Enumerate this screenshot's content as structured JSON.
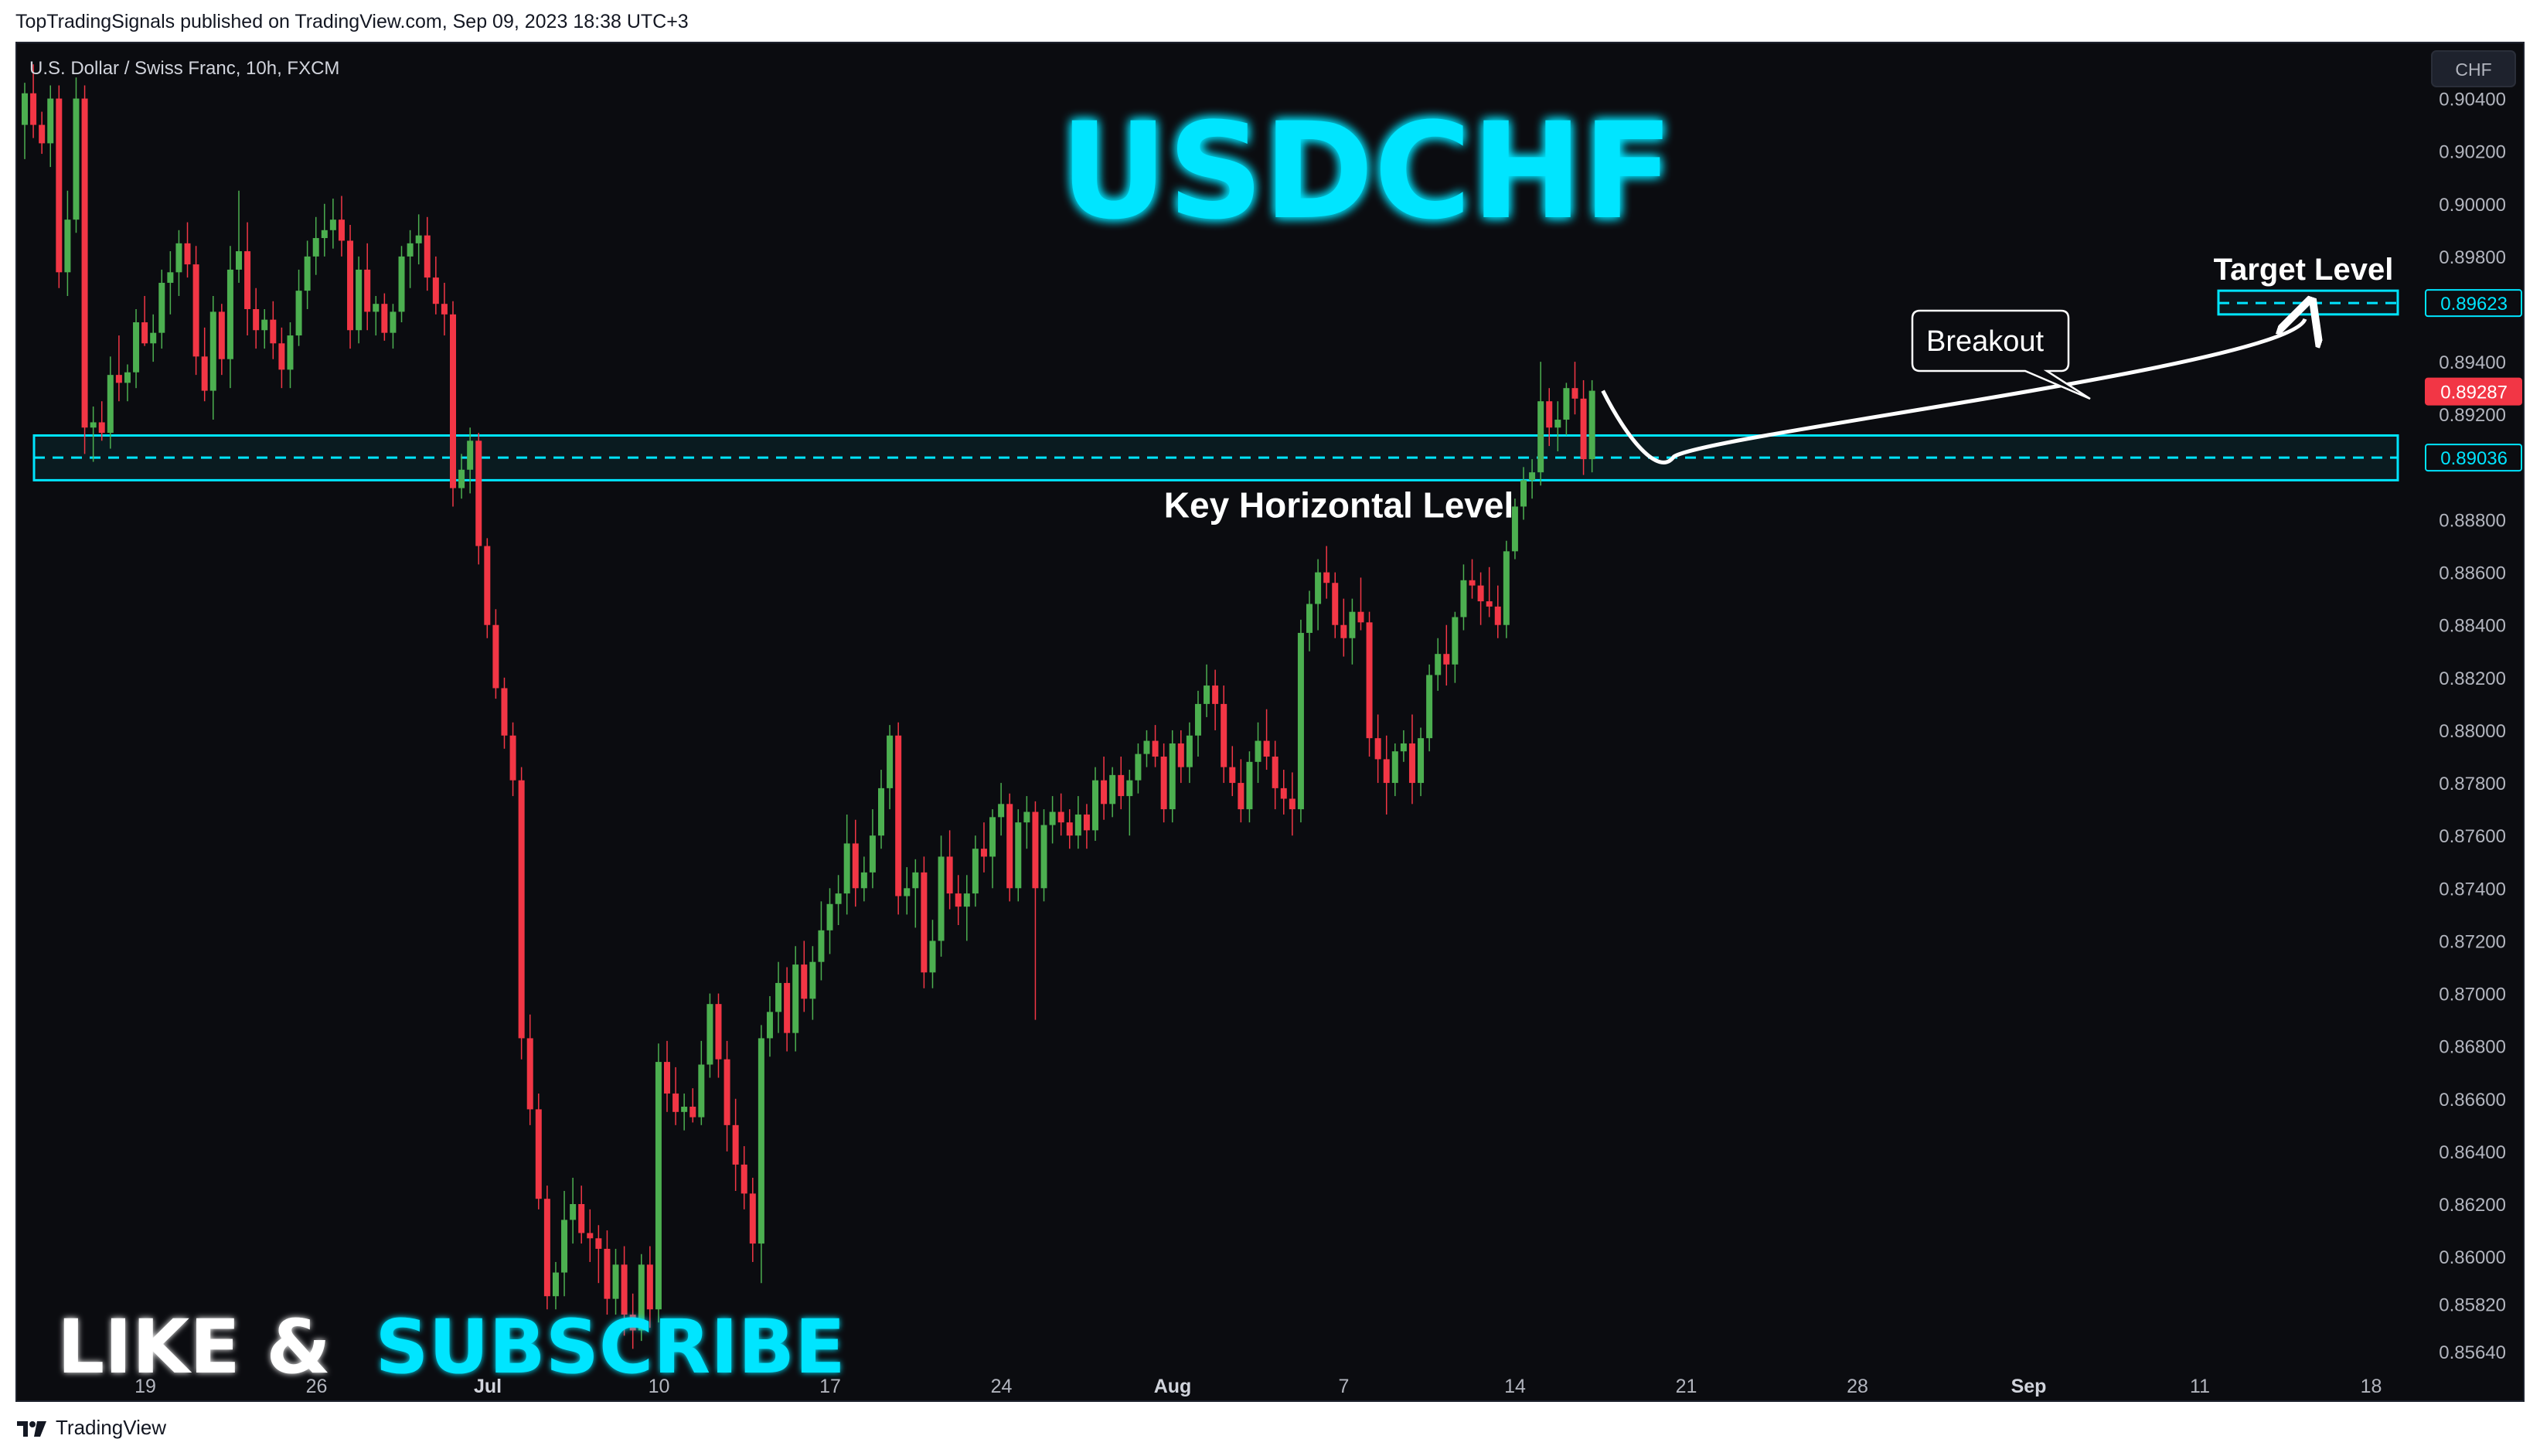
{
  "header": {
    "published_text": "TopTradingSignals published on TradingView.com, Sep 09, 2023 18:38 UTC+3"
  },
  "footer": {
    "brand": "TradingView"
  },
  "colors": {
    "background": "#0b0c10",
    "bull": "#4caf50",
    "bear": "#f23645",
    "accent": "#00e5ff",
    "text": "#b2b5be",
    "white": "#ffffff"
  },
  "chart_data": {
    "type": "candlestick",
    "symbol_label": "U.S. Dollar / Swiss Franc, 10h, FXCM",
    "currency_button": "CHF",
    "title": "USDCHF",
    "ylim": [
      0.8556,
      0.9061
    ],
    "y_ticks": [
      "0.90400",
      "0.90200",
      "0.90000",
      "0.89800",
      "0.89400",
      "0.89200",
      "0.88800",
      "0.88600",
      "0.88400",
      "0.88200",
      "0.88000",
      "0.87800",
      "0.87600",
      "0.87400",
      "0.87200",
      "0.87000",
      "0.86800",
      "0.86600",
      "0.86400",
      "0.86200",
      "0.86000",
      "0.85820",
      "0.85640"
    ],
    "x_ticks": [
      {
        "label": "19",
        "bold": false
      },
      {
        "label": "26",
        "bold": false
      },
      {
        "label": "Jul",
        "bold": true
      },
      {
        "label": "10",
        "bold": false
      },
      {
        "label": "17",
        "bold": false
      },
      {
        "label": "24",
        "bold": false
      },
      {
        "label": "Aug",
        "bold": true
      },
      {
        "label": "7",
        "bold": false
      },
      {
        "label": "14",
        "bold": false
      },
      {
        "label": "21",
        "bold": false
      },
      {
        "label": "28",
        "bold": false
      },
      {
        "label": "Sep",
        "bold": true
      },
      {
        "label": "11",
        "bold": false
      },
      {
        "label": "18",
        "bold": false
      }
    ],
    "price_tags": {
      "target": "0.89623",
      "current": "0.89287",
      "key_level": "0.89036"
    },
    "levels": {
      "key_level_top": 0.8912,
      "key_level_mid": 0.89036,
      "key_level_bottom": 0.8895,
      "target_top": 0.8967,
      "target_mid": 0.89623,
      "target_bottom": 0.8958
    },
    "annotations": {
      "key_level_label": "Key Horizontal Level",
      "target_label": "Target Level",
      "breakout_label": "Breakout",
      "cta_left": "LIKE &",
      "cta_right": "SUBSCRIBE"
    },
    "candles": [
      [
        0.903,
        0.9046,
        0.9017,
        0.9042
      ],
      [
        0.9042,
        0.9053,
        0.9025,
        0.903
      ],
      [
        0.903,
        0.9035,
        0.9019,
        0.9023
      ],
      [
        0.9023,
        0.9045,
        0.9014,
        0.904
      ],
      [
        0.904,
        0.9045,
        0.8968,
        0.8974
      ],
      [
        0.8974,
        0.9005,
        0.8965,
        0.8994
      ],
      [
        0.8994,
        0.9048,
        0.8989,
        0.904
      ],
      [
        0.904,
        0.9045,
        0.8905,
        0.8915
      ],
      [
        0.8915,
        0.8923,
        0.8902,
        0.8917
      ],
      [
        0.8917,
        0.8925,
        0.891,
        0.8913
      ],
      [
        0.8913,
        0.8942,
        0.8907,
        0.8935
      ],
      [
        0.8935,
        0.895,
        0.8925,
        0.8932
      ],
      [
        0.8932,
        0.8939,
        0.8925,
        0.8936
      ],
      [
        0.8936,
        0.896,
        0.893,
        0.8955
      ],
      [
        0.8955,
        0.8965,
        0.8946,
        0.8947
      ],
      [
        0.8947,
        0.8958,
        0.894,
        0.8951
      ],
      [
        0.8951,
        0.8975,
        0.8945,
        0.897
      ],
      [
        0.897,
        0.8982,
        0.8958,
        0.8974
      ],
      [
        0.8974,
        0.899,
        0.8965,
        0.8985
      ],
      [
        0.8985,
        0.8993,
        0.8972,
        0.8977
      ],
      [
        0.8977,
        0.8984,
        0.8935,
        0.8942
      ],
      [
        0.8942,
        0.8953,
        0.8925,
        0.8929
      ],
      [
        0.8929,
        0.8965,
        0.8918,
        0.8959
      ],
      [
        0.8959,
        0.8962,
        0.8935,
        0.8941
      ],
      [
        0.8941,
        0.8984,
        0.893,
        0.8975
      ],
      [
        0.8975,
        0.9005,
        0.897,
        0.8982
      ],
      [
        0.8982,
        0.8993,
        0.895,
        0.896
      ],
      [
        0.896,
        0.8968,
        0.8945,
        0.8952
      ],
      [
        0.8952,
        0.896,
        0.8945,
        0.8956
      ],
      [
        0.8956,
        0.8963,
        0.8941,
        0.8947
      ],
      [
        0.8947,
        0.8953,
        0.893,
        0.8937
      ],
      [
        0.8937,
        0.8955,
        0.893,
        0.895
      ],
      [
        0.895,
        0.8975,
        0.8946,
        0.8967
      ],
      [
        0.8967,
        0.8986,
        0.896,
        0.898
      ],
      [
        0.898,
        0.8995,
        0.8973,
        0.8987
      ],
      [
        0.8987,
        0.9,
        0.898,
        0.899
      ],
      [
        0.899,
        0.9002,
        0.8983,
        0.8994
      ],
      [
        0.8994,
        0.9003,
        0.898,
        0.8986
      ],
      [
        0.8986,
        0.8992,
        0.8945,
        0.8952
      ],
      [
        0.8952,
        0.898,
        0.8947,
        0.8975
      ],
      [
        0.8975,
        0.8985,
        0.8952,
        0.8959
      ],
      [
        0.8959,
        0.8965,
        0.895,
        0.8962
      ],
      [
        0.8962,
        0.8966,
        0.8948,
        0.8951
      ],
      [
        0.8951,
        0.8962,
        0.8945,
        0.8959
      ],
      [
        0.8959,
        0.8984,
        0.8955,
        0.898
      ],
      [
        0.898,
        0.899,
        0.8968,
        0.8985
      ],
      [
        0.8985,
        0.8996,
        0.8977,
        0.8988
      ],
      [
        0.8988,
        0.8995,
        0.8967,
        0.8972
      ],
      [
        0.8972,
        0.898,
        0.8958,
        0.8962
      ],
      [
        0.8962,
        0.897,
        0.895,
        0.8958
      ],
      [
        0.8958,
        0.8963,
        0.8885,
        0.8892
      ],
      [
        0.8892,
        0.8905,
        0.8888,
        0.8899
      ],
      [
        0.8899,
        0.8915,
        0.889,
        0.891
      ],
      [
        0.891,
        0.8913,
        0.8863,
        0.887
      ],
      [
        0.887,
        0.8873,
        0.8835,
        0.884
      ],
      [
        0.884,
        0.8846,
        0.8812,
        0.8816
      ],
      [
        0.8816,
        0.882,
        0.8793,
        0.8798
      ],
      [
        0.8798,
        0.8803,
        0.8775,
        0.8781
      ],
      [
        0.8781,
        0.8786,
        0.8675,
        0.8683
      ],
      [
        0.8683,
        0.8692,
        0.865,
        0.8656
      ],
      [
        0.8656,
        0.8662,
        0.8618,
        0.8622
      ],
      [
        0.8622,
        0.8627,
        0.858,
        0.8585
      ],
      [
        0.8585,
        0.8598,
        0.858,
        0.8594
      ],
      [
        0.8594,
        0.8625,
        0.8585,
        0.8614
      ],
      [
        0.8614,
        0.863,
        0.8605,
        0.862
      ],
      [
        0.862,
        0.8627,
        0.8605,
        0.8609
      ],
      [
        0.8609,
        0.8618,
        0.8598,
        0.8607
      ],
      [
        0.8607,
        0.8612,
        0.859,
        0.8603
      ],
      [
        0.8603,
        0.861,
        0.8578,
        0.8584
      ],
      [
        0.8584,
        0.8603,
        0.8578,
        0.8597
      ],
      [
        0.8597,
        0.8604,
        0.857,
        0.8578
      ],
      [
        0.8578,
        0.8586,
        0.8565,
        0.8572
      ],
      [
        0.8572,
        0.8601,
        0.8568,
        0.8597
      ],
      [
        0.8597,
        0.8604,
        0.8573,
        0.858
      ],
      [
        0.858,
        0.8681,
        0.8575,
        0.8674
      ],
      [
        0.8674,
        0.8682,
        0.8655,
        0.8662
      ],
      [
        0.8662,
        0.8672,
        0.865,
        0.8655
      ],
      [
        0.8655,
        0.8662,
        0.8648,
        0.8657
      ],
      [
        0.8657,
        0.8664,
        0.8651,
        0.8653
      ],
      [
        0.8653,
        0.8682,
        0.865,
        0.8673
      ],
      [
        0.8673,
        0.87,
        0.8668,
        0.8696
      ],
      [
        0.8696,
        0.87,
        0.8668,
        0.8675
      ],
      [
        0.8675,
        0.8682,
        0.864,
        0.865
      ],
      [
        0.865,
        0.866,
        0.8625,
        0.8635
      ],
      [
        0.8635,
        0.8642,
        0.8618,
        0.8624
      ],
      [
        0.8624,
        0.863,
        0.8598,
        0.8605
      ],
      [
        0.8605,
        0.8688,
        0.859,
        0.8683
      ],
      [
        0.8683,
        0.8699,
        0.8676,
        0.8693
      ],
      [
        0.8693,
        0.8712,
        0.8685,
        0.8704
      ],
      [
        0.8704,
        0.871,
        0.8678,
        0.8685
      ],
      [
        0.8685,
        0.8718,
        0.8678,
        0.8711
      ],
      [
        0.8711,
        0.872,
        0.8693,
        0.8698
      ],
      [
        0.8698,
        0.8718,
        0.869,
        0.8712
      ],
      [
        0.8712,
        0.8735,
        0.8705,
        0.8724
      ],
      [
        0.8724,
        0.874,
        0.8715,
        0.8734
      ],
      [
        0.8734,
        0.8745,
        0.8726,
        0.8738
      ],
      [
        0.8738,
        0.8768,
        0.873,
        0.8757
      ],
      [
        0.8757,
        0.8766,
        0.8733,
        0.874
      ],
      [
        0.874,
        0.8752,
        0.8735,
        0.8746
      ],
      [
        0.8746,
        0.877,
        0.874,
        0.876
      ],
      [
        0.876,
        0.8785,
        0.8755,
        0.8778
      ],
      [
        0.8778,
        0.8802,
        0.877,
        0.8798
      ],
      [
        0.8798,
        0.8803,
        0.873,
        0.8737
      ],
      [
        0.8737,
        0.8748,
        0.873,
        0.874
      ],
      [
        0.874,
        0.8751,
        0.8725,
        0.8746
      ],
      [
        0.8746,
        0.8752,
        0.8702,
        0.8708
      ],
      [
        0.8708,
        0.8728,
        0.8702,
        0.872
      ],
      [
        0.872,
        0.876,
        0.8714,
        0.8752
      ],
      [
        0.8752,
        0.8762,
        0.8732,
        0.8738
      ],
      [
        0.8738,
        0.8745,
        0.8726,
        0.8733
      ],
      [
        0.8733,
        0.8745,
        0.872,
        0.8738
      ],
      [
        0.8738,
        0.876,
        0.8733,
        0.8755
      ],
      [
        0.8755,
        0.8765,
        0.8746,
        0.8752
      ],
      [
        0.8752,
        0.877,
        0.874,
        0.8767
      ],
      [
        0.8767,
        0.878,
        0.876,
        0.8772
      ],
      [
        0.8772,
        0.8776,
        0.8735,
        0.874
      ],
      [
        0.874,
        0.877,
        0.8735,
        0.8765
      ],
      [
        0.8765,
        0.8775,
        0.8755,
        0.8769
      ],
      [
        0.8769,
        0.8773,
        0.869,
        0.874
      ],
      [
        0.874,
        0.877,
        0.8735,
        0.8764
      ],
      [
        0.8764,
        0.8775,
        0.8757,
        0.8769
      ],
      [
        0.8769,
        0.8776,
        0.876,
        0.8765
      ],
      [
        0.8765,
        0.877,
        0.8755,
        0.876
      ],
      [
        0.876,
        0.8775,
        0.8755,
        0.8768
      ],
      [
        0.8768,
        0.8772,
        0.8755,
        0.8762
      ],
      [
        0.8762,
        0.8786,
        0.8758,
        0.8781
      ],
      [
        0.8781,
        0.879,
        0.8766,
        0.8772
      ],
      [
        0.8772,
        0.8786,
        0.8767,
        0.8783
      ],
      [
        0.8783,
        0.879,
        0.877,
        0.8775
      ],
      [
        0.8775,
        0.8785,
        0.876,
        0.8781
      ],
      [
        0.8781,
        0.8795,
        0.8776,
        0.8791
      ],
      [
        0.8791,
        0.88,
        0.8786,
        0.8796
      ],
      [
        0.8796,
        0.8802,
        0.8786,
        0.879
      ],
      [
        0.879,
        0.8795,
        0.8765,
        0.877
      ],
      [
        0.877,
        0.88,
        0.8765,
        0.8795
      ],
      [
        0.8795,
        0.88,
        0.878,
        0.8786
      ],
      [
        0.8786,
        0.8803,
        0.878,
        0.8798
      ],
      [
        0.8798,
        0.8815,
        0.879,
        0.881
      ],
      [
        0.881,
        0.8825,
        0.8805,
        0.8817
      ],
      [
        0.8817,
        0.8823,
        0.88,
        0.881
      ],
      [
        0.881,
        0.8817,
        0.878,
        0.8786
      ],
      [
        0.8786,
        0.8794,
        0.8775,
        0.878
      ],
      [
        0.878,
        0.8789,
        0.8765,
        0.877
      ],
      [
        0.877,
        0.8792,
        0.8765,
        0.8788
      ],
      [
        0.8788,
        0.8803,
        0.878,
        0.8796
      ],
      [
        0.8796,
        0.8808,
        0.8785,
        0.879
      ],
      [
        0.879,
        0.8796,
        0.877,
        0.8778
      ],
      [
        0.8778,
        0.8785,
        0.8768,
        0.8774
      ],
      [
        0.8774,
        0.8784,
        0.876,
        0.877
      ],
      [
        0.877,
        0.8842,
        0.8765,
        0.8837
      ],
      [
        0.8837,
        0.8853,
        0.883,
        0.8848
      ],
      [
        0.8848,
        0.8865,
        0.8838,
        0.886
      ],
      [
        0.886,
        0.887,
        0.885,
        0.8856
      ],
      [
        0.8856,
        0.886,
        0.8835,
        0.884
      ],
      [
        0.884,
        0.885,
        0.8828,
        0.8835
      ],
      [
        0.8835,
        0.885,
        0.8825,
        0.8845
      ],
      [
        0.8845,
        0.8858,
        0.8838,
        0.8841
      ],
      [
        0.8841,
        0.8845,
        0.879,
        0.8797
      ],
      [
        0.8797,
        0.8806,
        0.878,
        0.8789
      ],
      [
        0.8789,
        0.8798,
        0.8768,
        0.878
      ],
      [
        0.878,
        0.8795,
        0.8775,
        0.8792
      ],
      [
        0.8792,
        0.88,
        0.8788,
        0.8795
      ],
      [
        0.8795,
        0.8806,
        0.8772,
        0.878
      ],
      [
        0.878,
        0.8801,
        0.8775,
        0.8797
      ],
      [
        0.8797,
        0.8825,
        0.8792,
        0.8821
      ],
      [
        0.8821,
        0.8835,
        0.8815,
        0.8829
      ],
      [
        0.8829,
        0.884,
        0.8817,
        0.8825
      ],
      [
        0.8825,
        0.8845,
        0.8818,
        0.8843
      ],
      [
        0.8843,
        0.8863,
        0.8838,
        0.8857
      ],
      [
        0.8857,
        0.8865,
        0.885,
        0.8855
      ],
      [
        0.8855,
        0.886,
        0.884,
        0.8849
      ],
      [
        0.8849,
        0.8862,
        0.8843,
        0.8847
      ],
      [
        0.8847,
        0.8855,
        0.8835,
        0.884
      ],
      [
        0.884,
        0.8872,
        0.8835,
        0.8868
      ],
      [
        0.8868,
        0.8888,
        0.8865,
        0.8885
      ],
      [
        0.8885,
        0.89,
        0.888,
        0.8895
      ],
      [
        0.8895,
        0.8903,
        0.8888,
        0.8898
      ],
      [
        0.8898,
        0.894,
        0.8893,
        0.8925
      ],
      [
        0.8925,
        0.893,
        0.8908,
        0.8915
      ],
      [
        0.8915,
        0.8925,
        0.8906,
        0.8918
      ],
      [
        0.8918,
        0.8932,
        0.8912,
        0.893
      ],
      [
        0.893,
        0.894,
        0.892,
        0.8926
      ],
      [
        0.8926,
        0.8933,
        0.8897,
        0.8903
      ],
      [
        0.8903,
        0.8933,
        0.8898,
        0.8929
      ]
    ]
  }
}
